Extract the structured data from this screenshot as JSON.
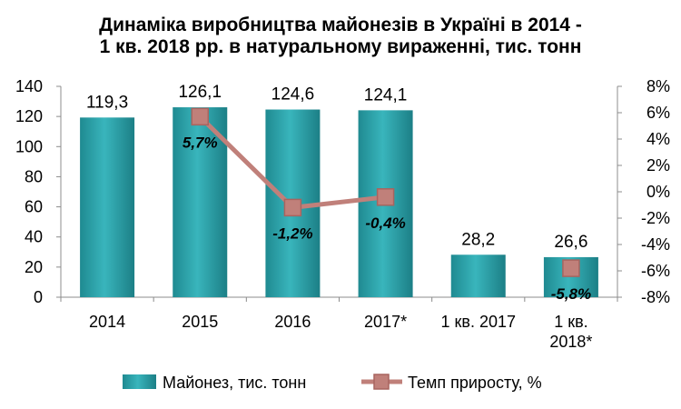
{
  "chart_data": {
    "type": "bar",
    "title_lines": [
      "Динаміка виробництва майонезів в Україні в 2014 -",
      "1 кв. 2018 рр. в натуральному вираженні, тис. тонн"
    ],
    "categories": [
      [
        "2014"
      ],
      [
        "2015"
      ],
      [
        "2016"
      ],
      [
        "2017*"
      ],
      [
        "1 кв. 2017"
      ],
      [
        "1 кв.",
        "2018*"
      ]
    ],
    "series": [
      {
        "name": "Майонез, тис. тонн",
        "type": "bar",
        "axis": "left",
        "color": "#2aa1a8",
        "values": [
          119.3,
          126.1,
          124.6,
          124.1,
          28.2,
          26.6
        ],
        "labels": [
          "119,3",
          "126,1",
          "124,6",
          "124,1",
          "28,2",
          "26,6"
        ]
      },
      {
        "name": "Темп приросту, %",
        "type": "line",
        "axis": "right",
        "color": "#c0807a",
        "values": [
          null,
          5.7,
          -1.2,
          -0.4,
          null,
          -5.8
        ],
        "labels": [
          "",
          "5,7%",
          "-1,2%",
          "-0,4%",
          "",
          "-5,8%"
        ]
      }
    ],
    "y_left": {
      "range": [
        0,
        140
      ],
      "ticks": [
        0,
        20,
        40,
        60,
        80,
        100,
        120,
        140
      ],
      "tick_labels": [
        "0",
        "20",
        "40",
        "60",
        "80",
        "100",
        "120",
        "140"
      ]
    },
    "y_right": {
      "range": [
        -8,
        8
      ],
      "ticks": [
        -8,
        -6,
        -4,
        -2,
        0,
        2,
        4,
        6,
        8
      ],
      "tick_labels": [
        "-8%",
        "-6%",
        "-4%",
        "-2%",
        "0%",
        "2%",
        "4%",
        "6%",
        "8%"
      ]
    },
    "grid": false,
    "legend_position": "bottom"
  }
}
